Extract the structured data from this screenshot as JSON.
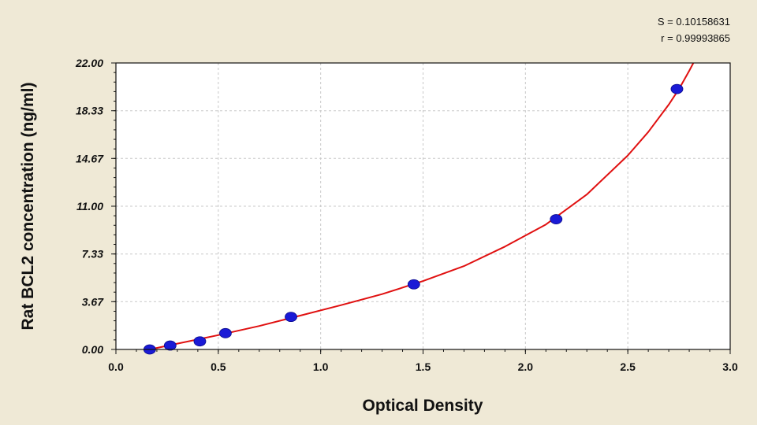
{
  "chart_data": {
    "type": "scatter",
    "title": "",
    "xlabel": "Optical Density",
    "ylabel": "Rat BCL2 concentration (ng/ml)",
    "xlim": [
      0,
      3.0
    ],
    "ylim": [
      0,
      22.0
    ],
    "x_ticks": [
      "0.0",
      "0.5",
      "1.0",
      "1.5",
      "2.0",
      "2.5",
      "3.0"
    ],
    "y_ticks": [
      "0.00",
      "3.67",
      "7.33",
      "11.00",
      "14.67",
      "18.33",
      "22.00"
    ],
    "grid": true,
    "stats": {
      "s_label": "S = 0.10158631",
      "r_label": "r = 0.99993865"
    },
    "colors": {
      "points": "#1a1ad6",
      "curve": "#e01010",
      "background": "#efe9d6",
      "plot_background": "#ffffff"
    },
    "series": [
      {
        "type": "scatter",
        "x": [
          0.165,
          0.265,
          0.41,
          0.535,
          0.855,
          1.455,
          2.15,
          2.74
        ],
        "y": [
          0.0,
          0.3,
          0.62,
          1.25,
          2.5,
          5.0,
          10.0,
          20.0
        ]
      },
      {
        "type": "line",
        "x": [
          0.165,
          0.3,
          0.5,
          0.7,
          0.9,
          1.1,
          1.3,
          1.5,
          1.7,
          1.9,
          2.1,
          2.3,
          2.5,
          2.6,
          2.7,
          2.75,
          2.8,
          2.82
        ],
        "y": [
          0.0,
          0.45,
          1.1,
          1.8,
          2.6,
          3.4,
          4.25,
          5.25,
          6.4,
          7.9,
          9.6,
          11.9,
          14.9,
          16.7,
          18.8,
          20.0,
          21.4,
          22.0
        ]
      }
    ]
  }
}
